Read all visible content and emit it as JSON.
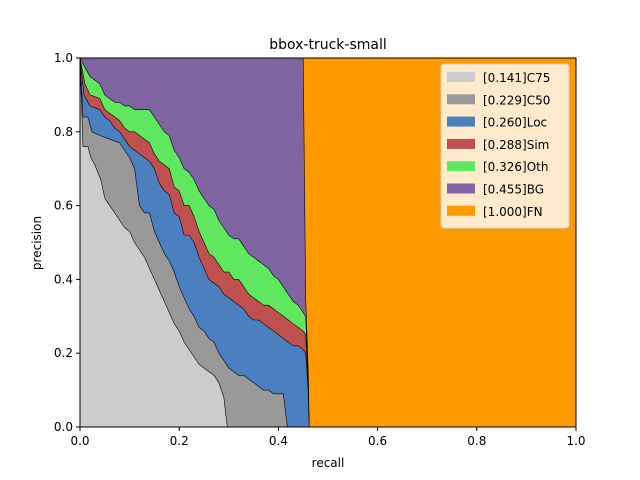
{
  "chart_data": {
    "type": "area",
    "title": "bbox-truck-small",
    "xlabel": "recall",
    "ylabel": "precision",
    "xlim": [
      0,
      1
    ],
    "ylim": [
      0,
      1
    ],
    "xticks": [
      "0.0",
      "0.2",
      "0.4",
      "0.6",
      "0.8",
      "1.0"
    ],
    "yticks": [
      "0.0",
      "0.2",
      "0.4",
      "0.6",
      "0.8",
      "1.0"
    ],
    "grid": false,
    "legend_position": "top-right",
    "series": [
      {
        "name": "[0.141]C75",
        "color": "#cccccc",
        "points": [
          [
            0,
            1.0
          ],
          [
            0.006,
            0.76
          ],
          [
            0.016,
            0.76
          ],
          [
            0.022,
            0.73
          ],
          [
            0.03,
            0.71
          ],
          [
            0.042,
            0.67
          ],
          [
            0.05,
            0.62
          ],
          [
            0.06,
            0.6
          ],
          [
            0.07,
            0.58
          ],
          [
            0.08,
            0.56
          ],
          [
            0.09,
            0.54
          ],
          [
            0.1,
            0.53
          ],
          [
            0.11,
            0.5
          ],
          [
            0.12,
            0.48
          ],
          [
            0.13,
            0.46
          ],
          [
            0.14,
            0.43
          ],
          [
            0.15,
            0.4
          ],
          [
            0.16,
            0.37
          ],
          [
            0.17,
            0.34
          ],
          [
            0.18,
            0.31
          ],
          [
            0.19,
            0.28
          ],
          [
            0.2,
            0.26
          ],
          [
            0.21,
            0.23
          ],
          [
            0.22,
            0.21
          ],
          [
            0.23,
            0.19
          ],
          [
            0.24,
            0.17
          ],
          [
            0.25,
            0.16
          ],
          [
            0.26,
            0.15
          ],
          [
            0.27,
            0.14
          ],
          [
            0.28,
            0.12
          ],
          [
            0.29,
            0.08
          ],
          [
            0.297,
            0.0
          ]
        ]
      },
      {
        "name": "[0.229]C50",
        "color": "#999999",
        "points": [
          [
            0,
            1.0
          ],
          [
            0.006,
            0.84
          ],
          [
            0.016,
            0.84
          ],
          [
            0.024,
            0.8
          ],
          [
            0.04,
            0.79
          ],
          [
            0.06,
            0.78
          ],
          [
            0.08,
            0.77
          ],
          [
            0.1,
            0.73
          ],
          [
            0.11,
            0.7
          ],
          [
            0.12,
            0.6
          ],
          [
            0.13,
            0.58
          ],
          [
            0.14,
            0.58
          ],
          [
            0.15,
            0.53
          ],
          [
            0.16,
            0.5
          ],
          [
            0.17,
            0.47
          ],
          [
            0.18,
            0.45
          ],
          [
            0.19,
            0.42
          ],
          [
            0.2,
            0.38
          ],
          [
            0.21,
            0.35
          ],
          [
            0.22,
            0.32
          ],
          [
            0.23,
            0.3
          ],
          [
            0.24,
            0.27
          ],
          [
            0.25,
            0.26
          ],
          [
            0.26,
            0.24
          ],
          [
            0.27,
            0.23
          ],
          [
            0.28,
            0.2
          ],
          [
            0.29,
            0.18
          ],
          [
            0.3,
            0.16
          ],
          [
            0.31,
            0.15
          ],
          [
            0.32,
            0.14
          ],
          [
            0.33,
            0.14
          ],
          [
            0.34,
            0.13
          ],
          [
            0.35,
            0.12
          ],
          [
            0.36,
            0.11
          ],
          [
            0.37,
            0.1
          ],
          [
            0.38,
            0.1
          ],
          [
            0.39,
            0.09
          ],
          [
            0.4,
            0.09
          ],
          [
            0.41,
            0.09
          ],
          [
            0.418,
            0.0
          ]
        ]
      },
      {
        "name": "[0.260]Loc",
        "color": "#4c7fc0",
        "points": [
          [
            0,
            1.0
          ],
          [
            0.008,
            0.9
          ],
          [
            0.02,
            0.87
          ],
          [
            0.04,
            0.86
          ],
          [
            0.05,
            0.84
          ],
          [
            0.06,
            0.83
          ],
          [
            0.07,
            0.81
          ],
          [
            0.08,
            0.8
          ],
          [
            0.09,
            0.78
          ],
          [
            0.1,
            0.76
          ],
          [
            0.11,
            0.75
          ],
          [
            0.12,
            0.74
          ],
          [
            0.13,
            0.73
          ],
          [
            0.14,
            0.72
          ],
          [
            0.15,
            0.7
          ],
          [
            0.16,
            0.66
          ],
          [
            0.17,
            0.64
          ],
          [
            0.18,
            0.63
          ],
          [
            0.19,
            0.58
          ],
          [
            0.2,
            0.57
          ],
          [
            0.21,
            0.52
          ],
          [
            0.22,
            0.52
          ],
          [
            0.23,
            0.5
          ],
          [
            0.24,
            0.46
          ],
          [
            0.25,
            0.43
          ],
          [
            0.26,
            0.4
          ],
          [
            0.27,
            0.39
          ],
          [
            0.28,
            0.38
          ],
          [
            0.29,
            0.36
          ],
          [
            0.3,
            0.35
          ],
          [
            0.31,
            0.34
          ],
          [
            0.32,
            0.33
          ],
          [
            0.33,
            0.32
          ],
          [
            0.34,
            0.3
          ],
          [
            0.35,
            0.29
          ],
          [
            0.36,
            0.29
          ],
          [
            0.37,
            0.28
          ],
          [
            0.38,
            0.27
          ],
          [
            0.39,
            0.26
          ],
          [
            0.4,
            0.25
          ],
          [
            0.41,
            0.24
          ],
          [
            0.42,
            0.23
          ],
          [
            0.43,
            0.22
          ],
          [
            0.44,
            0.22
          ],
          [
            0.45,
            0.21
          ],
          [
            0.455,
            0.2
          ],
          [
            0.46,
            0.1
          ],
          [
            0.462,
            0.0
          ]
        ]
      },
      {
        "name": "[0.288]Sim",
        "color": "#c0504d",
        "points": [
          [
            0,
            1.0
          ],
          [
            0.01,
            0.93
          ],
          [
            0.02,
            0.9
          ],
          [
            0.04,
            0.89
          ],
          [
            0.05,
            0.86
          ],
          [
            0.06,
            0.85
          ],
          [
            0.07,
            0.84
          ],
          [
            0.08,
            0.83
          ],
          [
            0.09,
            0.81
          ],
          [
            0.1,
            0.8
          ],
          [
            0.11,
            0.8
          ],
          [
            0.12,
            0.79
          ],
          [
            0.13,
            0.78
          ],
          [
            0.14,
            0.77
          ],
          [
            0.15,
            0.74
          ],
          [
            0.16,
            0.72
          ],
          [
            0.17,
            0.71
          ],
          [
            0.18,
            0.7
          ],
          [
            0.19,
            0.65
          ],
          [
            0.2,
            0.64
          ],
          [
            0.21,
            0.6
          ],
          [
            0.22,
            0.6
          ],
          [
            0.23,
            0.57
          ],
          [
            0.24,
            0.53
          ],
          [
            0.25,
            0.5
          ],
          [
            0.26,
            0.47
          ],
          [
            0.27,
            0.46
          ],
          [
            0.28,
            0.44
          ],
          [
            0.29,
            0.42
          ],
          [
            0.3,
            0.42
          ],
          [
            0.31,
            0.4
          ],
          [
            0.32,
            0.4
          ],
          [
            0.33,
            0.38
          ],
          [
            0.34,
            0.36
          ],
          [
            0.35,
            0.35
          ],
          [
            0.36,
            0.34
          ],
          [
            0.37,
            0.33
          ],
          [
            0.38,
            0.33
          ],
          [
            0.39,
            0.32
          ],
          [
            0.4,
            0.31
          ],
          [
            0.41,
            0.3
          ],
          [
            0.42,
            0.29
          ],
          [
            0.43,
            0.28
          ],
          [
            0.44,
            0.27
          ],
          [
            0.45,
            0.26
          ],
          [
            0.455,
            0.25
          ],
          [
            0.46,
            0.12
          ],
          [
            0.462,
            0.0
          ]
        ]
      },
      {
        "name": "[0.326]Oth",
        "color": "#5fe85f",
        "points": [
          [
            0,
            1.0
          ],
          [
            0.012,
            0.97
          ],
          [
            0.02,
            0.95
          ],
          [
            0.04,
            0.93
          ],
          [
            0.05,
            0.9
          ],
          [
            0.06,
            0.89
          ],
          [
            0.07,
            0.88
          ],
          [
            0.08,
            0.88
          ],
          [
            0.09,
            0.87
          ],
          [
            0.1,
            0.87
          ],
          [
            0.11,
            0.86
          ],
          [
            0.12,
            0.86
          ],
          [
            0.13,
            0.86
          ],
          [
            0.14,
            0.86
          ],
          [
            0.15,
            0.84
          ],
          [
            0.16,
            0.82
          ],
          [
            0.17,
            0.8
          ],
          [
            0.18,
            0.79
          ],
          [
            0.19,
            0.75
          ],
          [
            0.2,
            0.73
          ],
          [
            0.21,
            0.7
          ],
          [
            0.22,
            0.69
          ],
          [
            0.23,
            0.67
          ],
          [
            0.24,
            0.64
          ],
          [
            0.25,
            0.62
          ],
          [
            0.26,
            0.6
          ],
          [
            0.27,
            0.59
          ],
          [
            0.28,
            0.56
          ],
          [
            0.29,
            0.54
          ],
          [
            0.3,
            0.52
          ],
          [
            0.31,
            0.51
          ],
          [
            0.32,
            0.51
          ],
          [
            0.33,
            0.49
          ],
          [
            0.34,
            0.47
          ],
          [
            0.35,
            0.46
          ],
          [
            0.36,
            0.45
          ],
          [
            0.37,
            0.44
          ],
          [
            0.38,
            0.43
          ],
          [
            0.39,
            0.41
          ],
          [
            0.4,
            0.4
          ],
          [
            0.41,
            0.38
          ],
          [
            0.42,
            0.36
          ],
          [
            0.43,
            0.34
          ],
          [
            0.44,
            0.33
          ],
          [
            0.45,
            0.31
          ],
          [
            0.455,
            0.3
          ],
          [
            0.46,
            0.14
          ],
          [
            0.462,
            0.0
          ]
        ]
      },
      {
        "name": "[0.455]BG",
        "color": "#8064a2",
        "points": [
          [
            0,
            1.0
          ],
          [
            0.45,
            1.0
          ],
          [
            0.455,
            0.35
          ],
          [
            0.46,
            0.16
          ],
          [
            0.462,
            0.0
          ]
        ]
      },
      {
        "name": "[1.000]FN",
        "color": "#ff9900",
        "points": [
          [
            0,
            1.0
          ],
          [
            1.0,
            1.0
          ],
          [
            1.0,
            0.0
          ]
        ]
      }
    ],
    "legend": [
      "[0.141]C75",
      "[0.229]C50",
      "[0.260]Loc",
      "[0.288]Sim",
      "[0.326]Oth",
      "[0.455]BG",
      "[1.000]FN"
    ]
  }
}
